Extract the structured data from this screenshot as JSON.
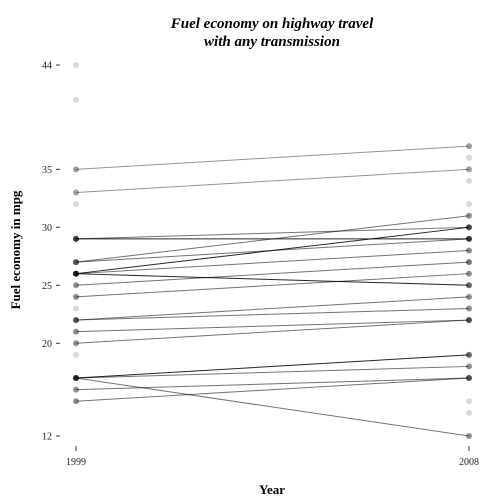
{
  "chart_data": {
    "type": "line",
    "title_line1": "Fuel economy on highway travel",
    "title_line2": "with any transmission",
    "xlabel": "Year",
    "ylabel": "Fuel economy in mpg",
    "x_ticks": [
      "1999",
      "2008"
    ],
    "y_ticks": [
      12,
      20,
      25,
      30,
      35,
      44
    ],
    "ylim": [
      12,
      44
    ],
    "grid": false,
    "points_1999": [
      44,
      41,
      35,
      33,
      32,
      29,
      29,
      27,
      27,
      26,
      26,
      26,
      25,
      24,
      23,
      22,
      22,
      21,
      20,
      19,
      17,
      17,
      16,
      15
    ],
    "points_2008": [
      37,
      36,
      35,
      34,
      32,
      31,
      30,
      29,
      29,
      28,
      27,
      27,
      26,
      25,
      24,
      23,
      22,
      22,
      19,
      18,
      17,
      17,
      15,
      14,
      12
    ],
    "series": [
      {
        "y1999": 35,
        "y2008": 37,
        "shade": 0.42
      },
      {
        "y1999": 33,
        "y2008": 35,
        "shade": 0.42
      },
      {
        "y1999": 29,
        "y2008": 29,
        "shade": 0.85
      },
      {
        "y1999": 29,
        "y2008": 30,
        "shade": 0.55
      },
      {
        "y1999": 27,
        "y2008": 31,
        "shade": 0.55
      },
      {
        "y1999": 27,
        "y2008": 29,
        "shade": 0.55
      },
      {
        "y1999": 26,
        "y2008": 30,
        "shade": 0.85
      },
      {
        "y1999": 26,
        "y2008": 28,
        "shade": 0.55
      },
      {
        "y1999": 26,
        "y2008": 25,
        "shade": 0.85
      },
      {
        "y1999": 25,
        "y2008": 27,
        "shade": 0.55
      },
      {
        "y1999": 24,
        "y2008": 26,
        "shade": 0.55
      },
      {
        "y1999": 22,
        "y2008": 24,
        "shade": 0.55
      },
      {
        "y1999": 22,
        "y2008": 23,
        "shade": 0.55
      },
      {
        "y1999": 21,
        "y2008": 22,
        "shade": 0.55
      },
      {
        "y1999": 20,
        "y2008": 22,
        "shade": 0.55
      },
      {
        "y1999": 17,
        "y2008": 19,
        "shade": 0.85
      },
      {
        "y1999": 17,
        "y2008": 18,
        "shade": 0.55
      },
      {
        "y1999": 17,
        "y2008": 12,
        "shade": 0.55
      },
      {
        "y1999": 16,
        "y2008": 17,
        "shade": 0.55
      },
      {
        "y1999": 15,
        "y2008": 17,
        "shade": 0.55
      }
    ]
  }
}
